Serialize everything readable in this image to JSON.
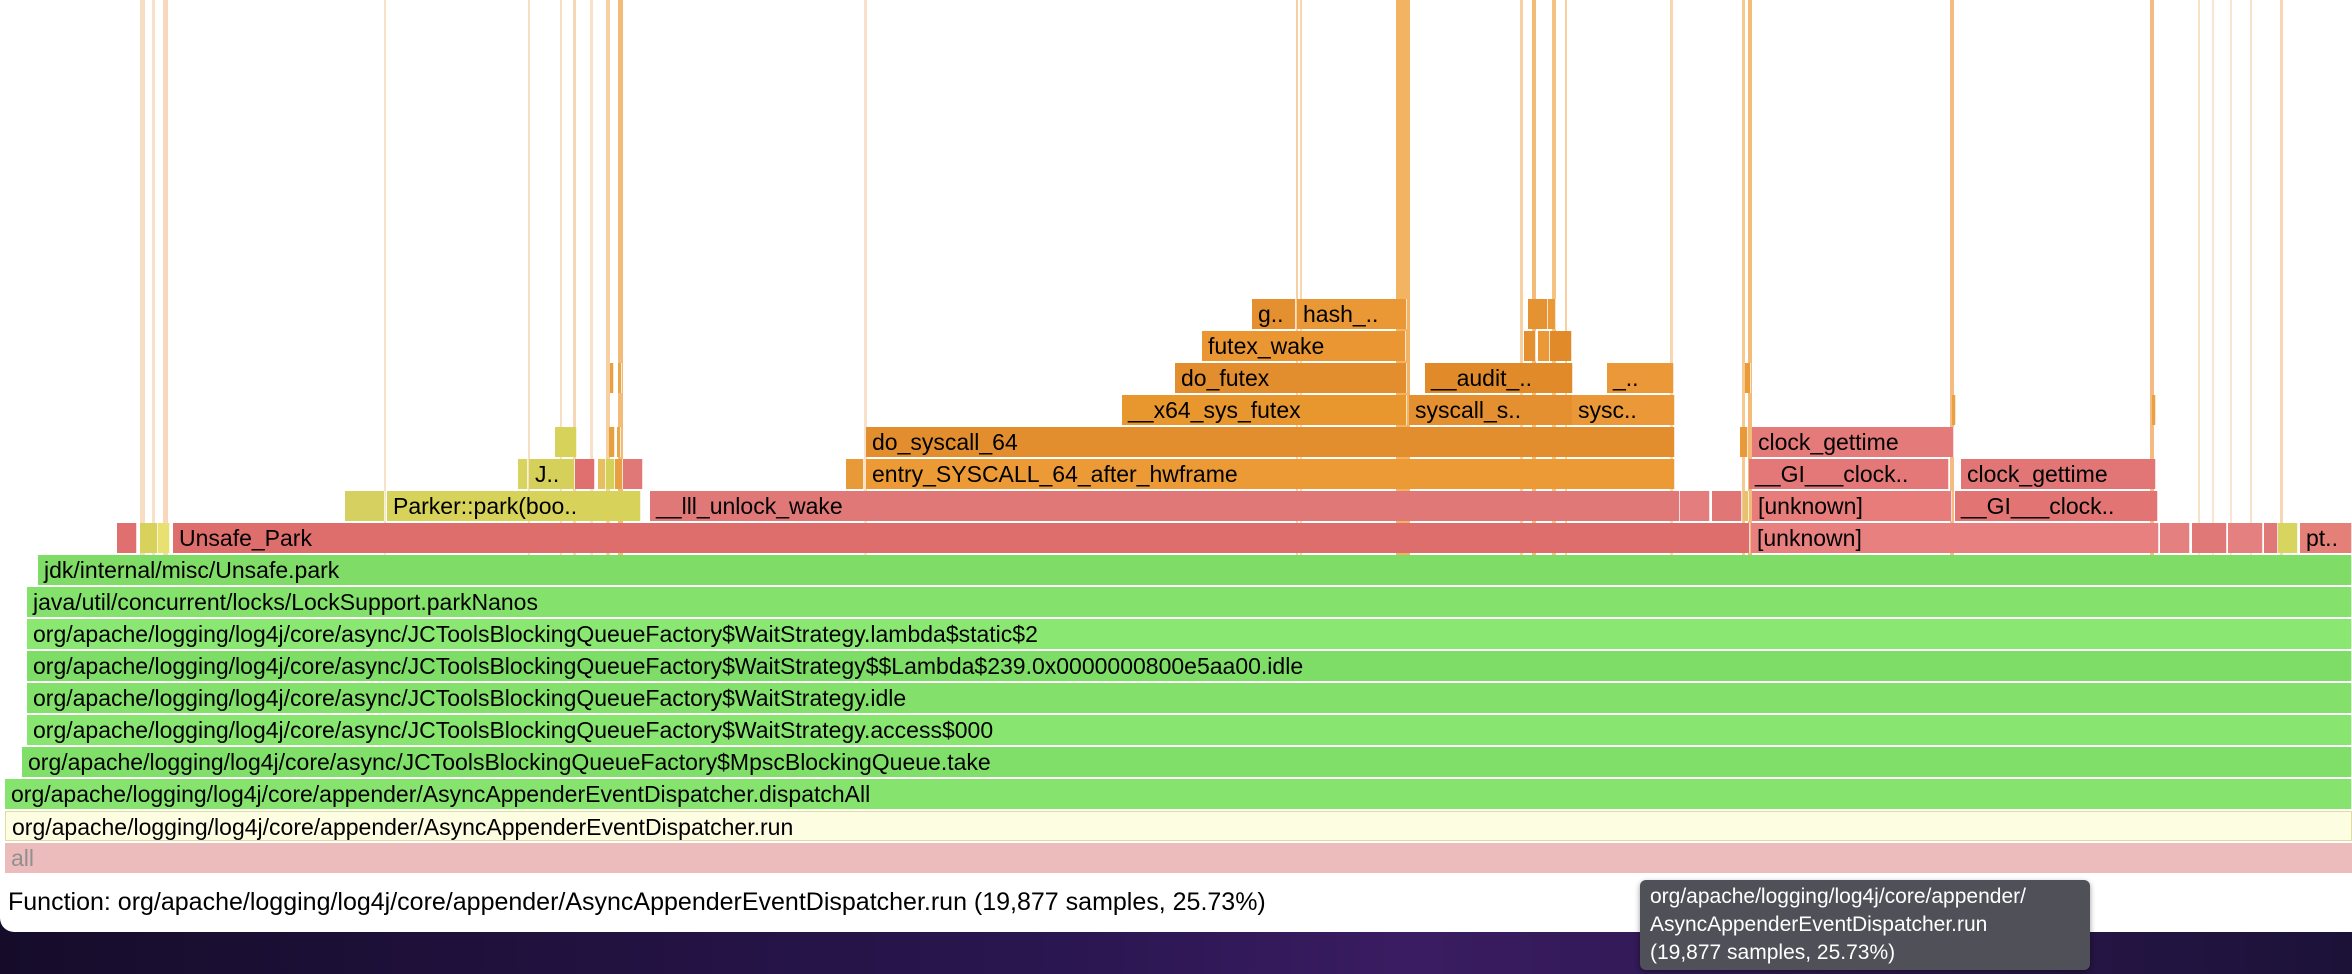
{
  "flamegraph": {
    "frames": [
      {
        "key": "root-all",
        "label": "all",
        "color": "#ecbbbb",
        "text_color": "#909090"
      },
      {
        "key": "dispatcher-run",
        "label": "org/apache/logging/log4j/core/appender/AsyncAppenderEventDispatcher.run",
        "color": "#fdfde2",
        "highlighted": true
      },
      {
        "key": "dispatch-all",
        "label": "org/apache/logging/log4j/core/appender/AsyncAppenderEventDispatcher.dispatchAll",
        "color": "#86e46e"
      },
      {
        "key": "mpsc-take",
        "label": "org/apache/logging/log4j/core/async/JCToolsBlockingQueueFactory$MpscBlockingQueue.take",
        "color": "#80df68"
      },
      {
        "key": "access-000",
        "label": "org/apache/logging/log4j/core/async/JCToolsBlockingQueueFactory$WaitStrategy.access$000",
        "color": "#88e670"
      },
      {
        "key": "wait-idle",
        "label": "org/apache/logging/log4j/core/async/JCToolsBlockingQueueFactory$WaitStrategy.idle",
        "color": "#83e06a"
      },
      {
        "key": "lambda-idle",
        "label": "org/apache/logging/log4j/core/async/JCToolsBlockingQueueFactory$WaitStrategy$$Lambda$239.0x0000000800e5aa00.idle",
        "color": "#7edd66"
      },
      {
        "key": "lambda-static",
        "label": "org/apache/logging/log4j/core/async/JCToolsBlockingQueueFactory$WaitStrategy.lambda$static$2",
        "color": "#8ae872"
      },
      {
        "key": "park-nanos",
        "label": "java/util/concurrent/locks/LockSupport.parkNanos",
        "color": "#84e26c"
      },
      {
        "key": "unsafe-park-java",
        "label": "jdk/internal/misc/Unsafe.park",
        "color": "#7fdc66"
      },
      {
        "key": "unsafe-park",
        "label": "Unsafe_Park",
        "color": "#de6e6c"
      },
      {
        "key": "unknown-1",
        "label": "[unknown]",
        "color": "#e88080"
      },
      {
        "key": "pt-trunc",
        "label": "pt..",
        "color": "#e58078"
      },
      {
        "key": "parker-park",
        "label": "Parker::park(boo..",
        "color": "#d6d25a"
      },
      {
        "key": "lll-unlock-wake",
        "label": "__lll_unlock_wake",
        "color": "#e07878"
      },
      {
        "key": "unknown-2",
        "label": "[unknown]",
        "color": "#e87c7a"
      },
      {
        "key": "gi-clock-1",
        "label": "__GI___clock..",
        "color": "#e27474"
      },
      {
        "key": "j-trunc",
        "label": "J..",
        "color": "#d4d05a"
      },
      {
        "key": "entry-syscall",
        "label": "entry_SYSCALL_64_after_hwframe",
        "color": "#ec9a36"
      },
      {
        "key": "gi-clock-2",
        "label": "__GI___clock..",
        "color": "#e47878"
      },
      {
        "key": "clock-gettime-2",
        "label": "clock_gettime",
        "color": "#e27676"
      },
      {
        "key": "do-syscall",
        "label": "do_syscall_64",
        "color": "#e28e2e"
      },
      {
        "key": "clock-gettime-1",
        "label": "clock_gettime",
        "color": "#e47a7a"
      },
      {
        "key": "x64-sys-futex",
        "label": "__x64_sys_futex",
        "color": "#e8962e"
      },
      {
        "key": "syscall-s",
        "label": "syscall_s..",
        "color": "#e49030"
      },
      {
        "key": "sysc",
        "label": "sysc..",
        "color": "#ea9838"
      },
      {
        "key": "do-futex",
        "label": "do_futex",
        "color": "#e28e2e"
      },
      {
        "key": "audit",
        "label": "__audit_..",
        "color": "#e08a2a"
      },
      {
        "key": "dunder-trunc",
        "label": "_..",
        "color": "#ea9838"
      },
      {
        "key": "futex-wake",
        "label": "futex_wake",
        "color": "#ea9632"
      },
      {
        "key": "g-trunc",
        "label": "g..",
        "color": "#e49030"
      },
      {
        "key": "hash-trunc",
        "label": "hash_..",
        "color": "#ea9836"
      }
    ]
  },
  "status_bar": {
    "label": "Function:",
    "value": "org/apache/logging/log4j/core/appender/AsyncAppenderEventDispatcher.run (19,877 samples, 25.73%)"
  },
  "tooltip": {
    "line1": "org/apache/logging/log4j/core/appender/",
    "line2": "AsyncAppenderEventDispatcher.run",
    "line3": "(19,877 samples, 25.73%)"
  }
}
